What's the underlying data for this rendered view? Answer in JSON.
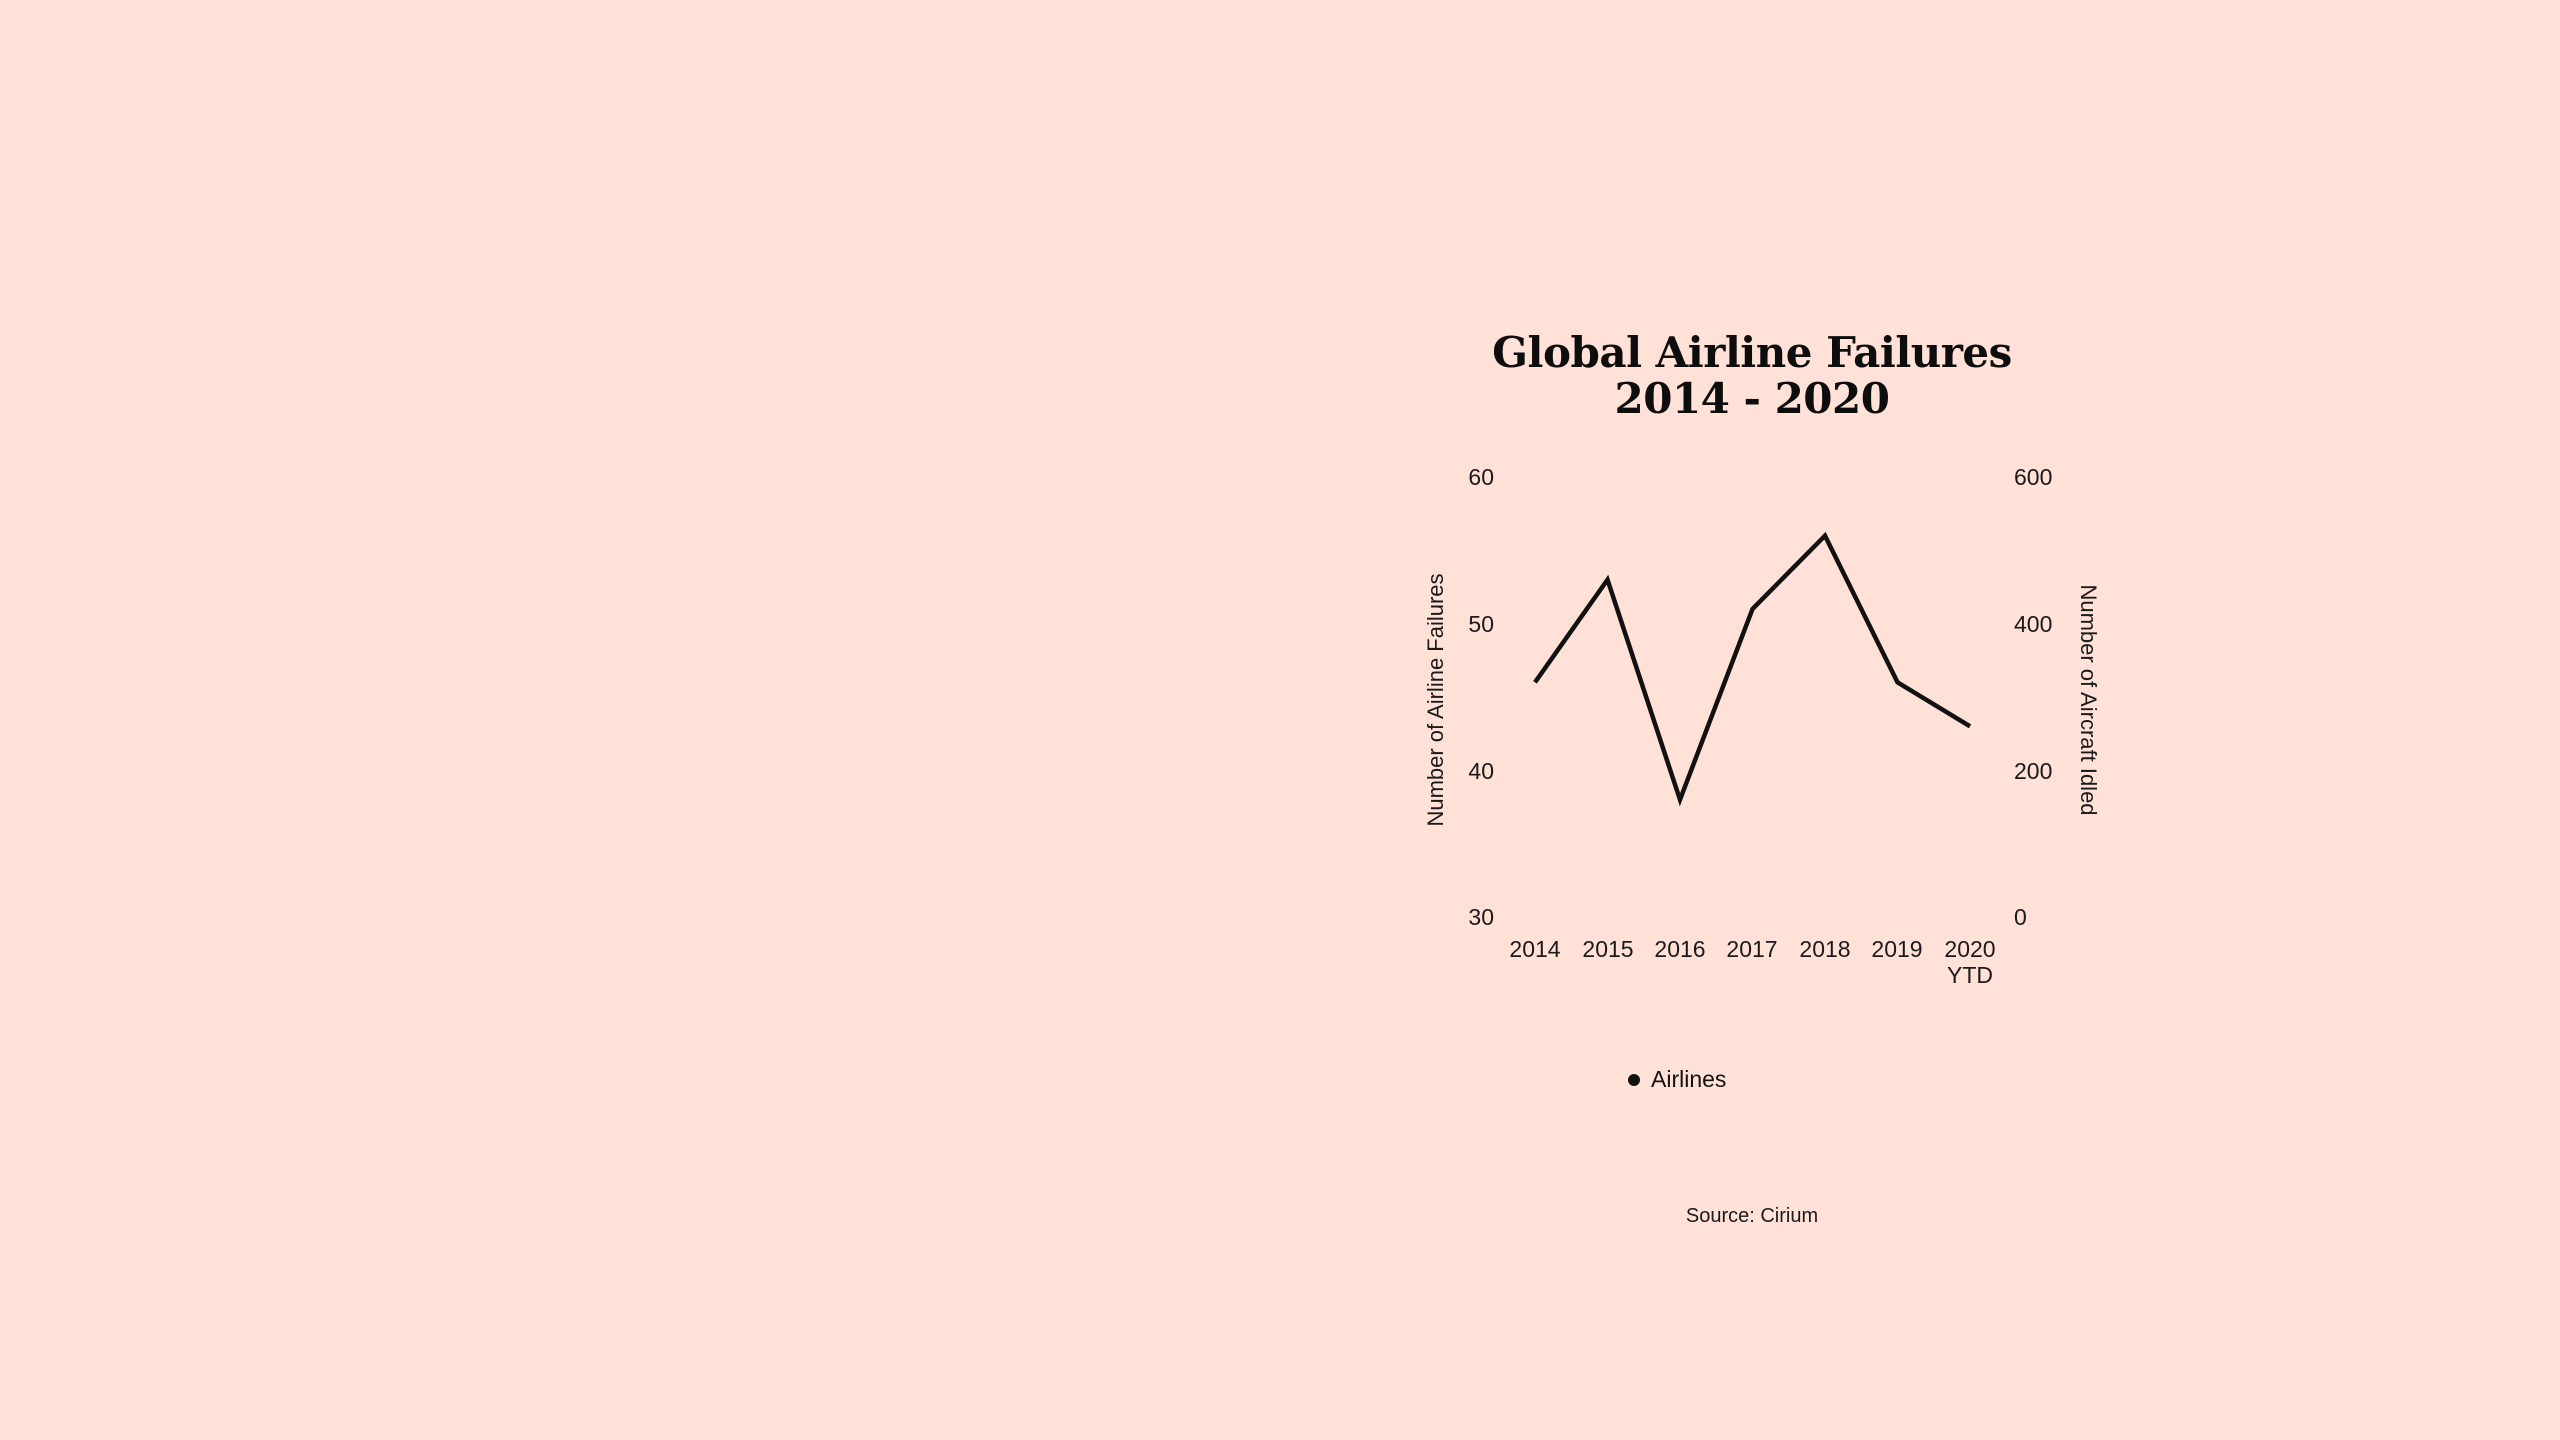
{
  "colors": {
    "background": "#FFE1D7",
    "line": "#111111",
    "text": "#111111"
  },
  "chart": {
    "title_line1": "Global Airline Failures",
    "title_line2": "2014 - 2020",
    "left_axis_title": "Number of Airline Failures",
    "right_axis_title": "Number of Aircraft Idled",
    "left_ticks": [
      "60",
      "50",
      "40",
      "30"
    ],
    "right_ticks": [
      "600",
      "400",
      "200",
      "0"
    ],
    "x_ticks": [
      {
        "line1": "2014",
        "line2": ""
      },
      {
        "line1": "2015",
        "line2": ""
      },
      {
        "line1": "2016",
        "line2": ""
      },
      {
        "line1": "2017",
        "line2": ""
      },
      {
        "line1": "2018",
        "line2": ""
      },
      {
        "line1": "2019",
        "line2": ""
      },
      {
        "line1": "2020",
        "line2": "YTD"
      }
    ],
    "legend_label": "Airlines",
    "source": "Source: Cirium"
  },
  "chart_data": {
    "type": "line",
    "title": "Global Airline Failures 2014 - 2020",
    "categories": [
      "2014",
      "2015",
      "2016",
      "2017",
      "2018",
      "2019",
      "2020 YTD"
    ],
    "series": [
      {
        "name": "Airlines",
        "axis": "left",
        "values": [
          46,
          53,
          38,
          51,
          56,
          46,
          43
        ]
      }
    ],
    "xlabel": "",
    "ylabel": "Number of Airline Failures",
    "ylim": [
      30,
      60
    ],
    "y_ticks": [
      30,
      40,
      50,
      60
    ],
    "y2label": "Number of Aircraft Idled",
    "y2lim": [
      0,
      600
    ],
    "y2_ticks": [
      0,
      200,
      400,
      600
    ],
    "legend": [
      "Airlines"
    ],
    "legend_position": "bottom",
    "grid": false,
    "source": "Source: Cirium"
  }
}
